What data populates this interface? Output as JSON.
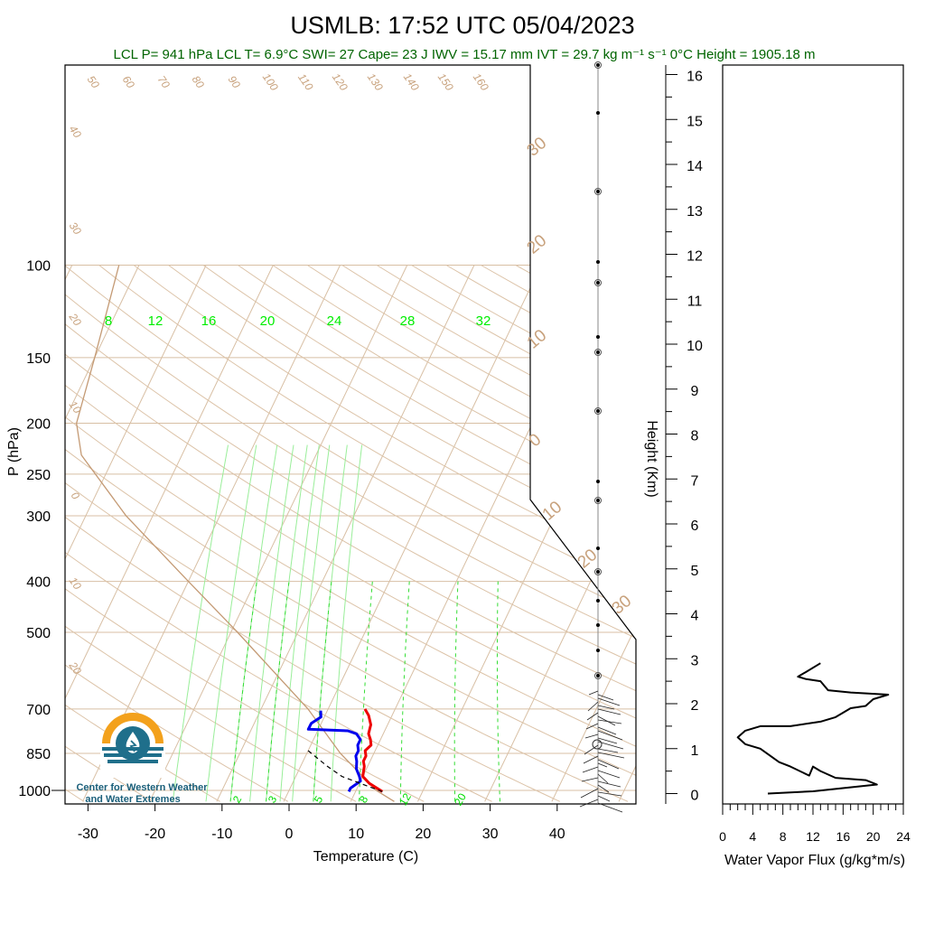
{
  "header": {
    "title": "USMLB: 17:52 UTC 05/04/2023",
    "indices": "LCL P= 941 hPa  LCL T= 6.9°C  SWI= 27  Cape= 23 J  IWV = 15.17 mm  IVT = 29.7 kg m⁻¹ s⁻¹  0°C Height = 1905.18 m"
  },
  "logo": {
    "line1": "Center for Western Weather",
    "line2": "and Water Extremes"
  },
  "colors": {
    "temperature": "#ee0000",
    "dewpoint": "#0000ee",
    "dry_adiabat": "#c8a27d",
    "mixing_ratio": "#33dd33",
    "flux": "#000000"
  },
  "chart_data": [
    {
      "type": "line",
      "name": "skew-t",
      "xlabel": "Temperature (C)",
      "ylabel": "P (hPa)",
      "xlim": [
        -35,
        50
      ],
      "ylim": [
        1050,
        100
      ],
      "x_ticks": [
        "-30",
        "-20",
        "-10",
        "0",
        "10",
        "20",
        "30",
        "40"
      ],
      "p_ticks": [
        "100",
        "150",
        "200",
        "250",
        "300",
        "400",
        "500",
        "700",
        "850",
        "1000"
      ],
      "series": [
        {
          "key": "temperature",
          "points": [
            [
              14,
              1005
            ],
            [
              11.5,
              970
            ],
            [
              10,
              941
            ],
            [
              9.5,
              900
            ],
            [
              9,
              880
            ],
            [
              9,
              860
            ],
            [
              8.5,
              840
            ],
            [
              9,
              820
            ],
            [
              8.5,
              800
            ],
            [
              7.8,
              780
            ],
            [
              7.5,
              750
            ],
            [
              6.5,
              720
            ],
            [
              5.5,
              700
            ]
          ]
        },
        {
          "key": "dewpoint",
          "points": [
            [
              9,
              1005
            ],
            [
              9,
              990
            ],
            [
              10,
              960
            ],
            [
              9.5,
              941
            ],
            [
              8.5,
              910
            ],
            [
              8,
              880
            ],
            [
              7.5,
              860
            ],
            [
              7.5,
              840
            ],
            [
              7,
              820
            ],
            [
              7,
              800
            ],
            [
              6,
              780
            ],
            [
              4.5,
              770
            ],
            [
              -1.5,
              765
            ],
            [
              -1.5,
              745
            ],
            [
              -0.5,
              725
            ],
            [
              -1,
              705
            ]
          ]
        },
        {
          "key": "parcel",
          "points": [
            [
              14,
              1005
            ],
            [
              6.9,
              941
            ],
            [
              4,
              900
            ],
            [
              0,
              840
            ]
          ]
        }
      ],
      "mixing_ratio_labels": [
        "8",
        "12",
        "16",
        "20",
        "24",
        "28",
        "32"
      ],
      "mixing_ratio_bottom_labels": [
        "2",
        "3",
        "5",
        "8",
        "12",
        "20"
      ],
      "isotherm_labels": [
        "30",
        "20",
        "10",
        "0",
        "10",
        "20",
        "30"
      ],
      "adiabat_labels_top": [
        "50",
        "60",
        "70",
        "80",
        "90",
        "100",
        "110",
        "120",
        "130",
        "140",
        "150",
        "160"
      ],
      "adiabat_labels_left": [
        "40",
        "30",
        "20",
        "10",
        "0",
        "10",
        "20"
      ]
    },
    {
      "type": "line",
      "name": "height-axis",
      "ylabel": "Height (Km)",
      "y_ticks": [
        "0",
        "1",
        "2",
        "3",
        "4",
        "5",
        "6",
        "7",
        "8",
        "9",
        "10",
        "11",
        "12",
        "13",
        "14",
        "15",
        "16"
      ]
    },
    {
      "type": "line",
      "name": "water-vapor-flux",
      "xlabel": "Water Vapor Flux (g/kg*m/s)",
      "x_ticks": [
        "0",
        "4",
        "8",
        "12",
        "16",
        "20",
        "24"
      ],
      "xlim": [
        0,
        24
      ],
      "ylim": [
        0,
        16.5
      ],
      "series": [
        {
          "key": "flux",
          "points": [
            [
              6,
              0
            ],
            [
              12,
              0.05
            ],
            [
              20.5,
              0.2
            ],
            [
              19,
              0.3
            ],
            [
              15,
              0.35
            ],
            [
              13,
              0.5
            ],
            [
              12,
              0.6
            ],
            [
              11.5,
              0.4
            ],
            [
              9,
              0.6
            ],
            [
              7.5,
              0.7
            ],
            [
              5,
              1.0
            ],
            [
              3,
              1.1
            ],
            [
              2,
              1.25
            ],
            [
              3,
              1.4
            ],
            [
              5,
              1.5
            ],
            [
              9,
              1.5
            ],
            [
              13,
              1.6
            ],
            [
              15,
              1.7
            ],
            [
              17,
              1.9
            ],
            [
              19,
              1.95
            ],
            [
              20,
              2.1
            ],
            [
              22,
              2.2
            ],
            [
              17,
              2.25
            ],
            [
              14,
              2.3
            ],
            [
              13,
              2.5
            ],
            [
              11,
              2.55
            ],
            [
              10,
              2.6
            ],
            [
              11,
              2.7
            ],
            [
              13,
              2.9
            ]
          ]
        }
      ]
    }
  ]
}
